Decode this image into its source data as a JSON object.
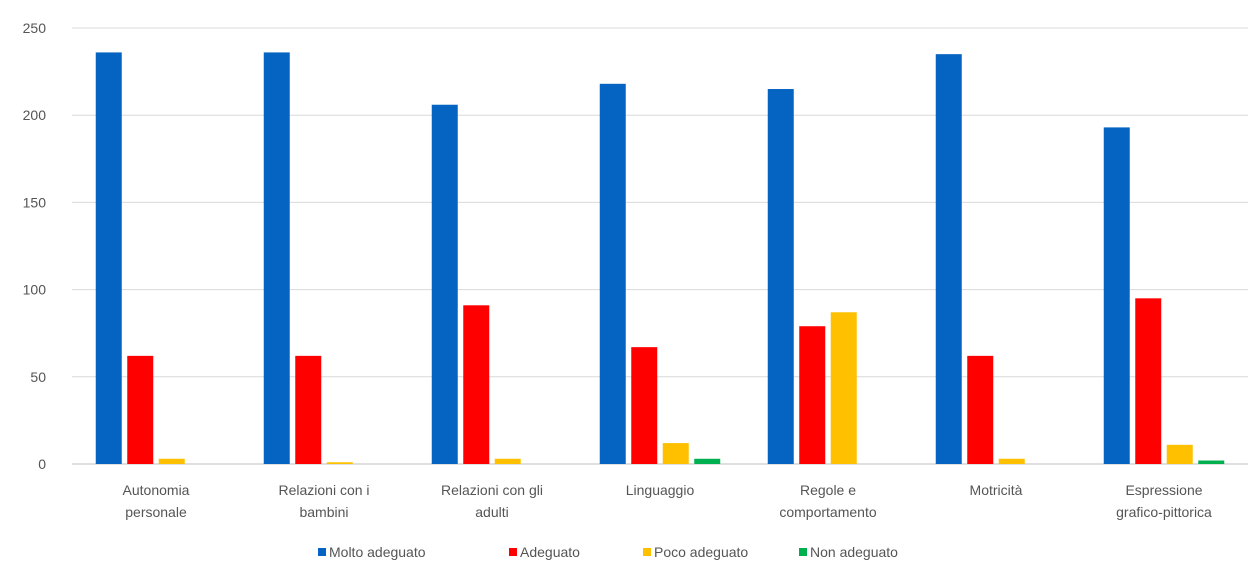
{
  "chart_data": {
    "type": "bar",
    "title": "",
    "xlabel": "",
    "ylabel": "",
    "ylim": [
      0,
      250
    ],
    "yticks": [
      0,
      50,
      100,
      150,
      200,
      250
    ],
    "grid": true,
    "legend_position": "bottom",
    "categories": [
      [
        "Autonomia",
        "personale"
      ],
      [
        "Relazioni con i",
        "bambini"
      ],
      [
        "Relazioni con gli",
        "adulti"
      ],
      [
        "Linguaggio"
      ],
      [
        "Regole e",
        "comportamento"
      ],
      [
        "Motricità"
      ],
      [
        "Espressione",
        "grafico-pittorica"
      ]
    ],
    "series": [
      {
        "name": "Molto adeguato",
        "color": "#0563C1",
        "values": [
          236,
          236,
          206,
          218,
          215,
          235,
          193
        ]
      },
      {
        "name": "Adeguato",
        "color": "#FF0000",
        "values": [
          62,
          62,
          91,
          67,
          79,
          62,
          95
        ]
      },
      {
        "name": "Poco adeguato",
        "color": "#FFC000",
        "values": [
          3,
          1,
          3,
          12,
          87,
          3,
          11
        ]
      },
      {
        "name": "Non adeguato",
        "color": "#00B050",
        "values": [
          0,
          0,
          0,
          3,
          0,
          0,
          2
        ]
      }
    ]
  }
}
